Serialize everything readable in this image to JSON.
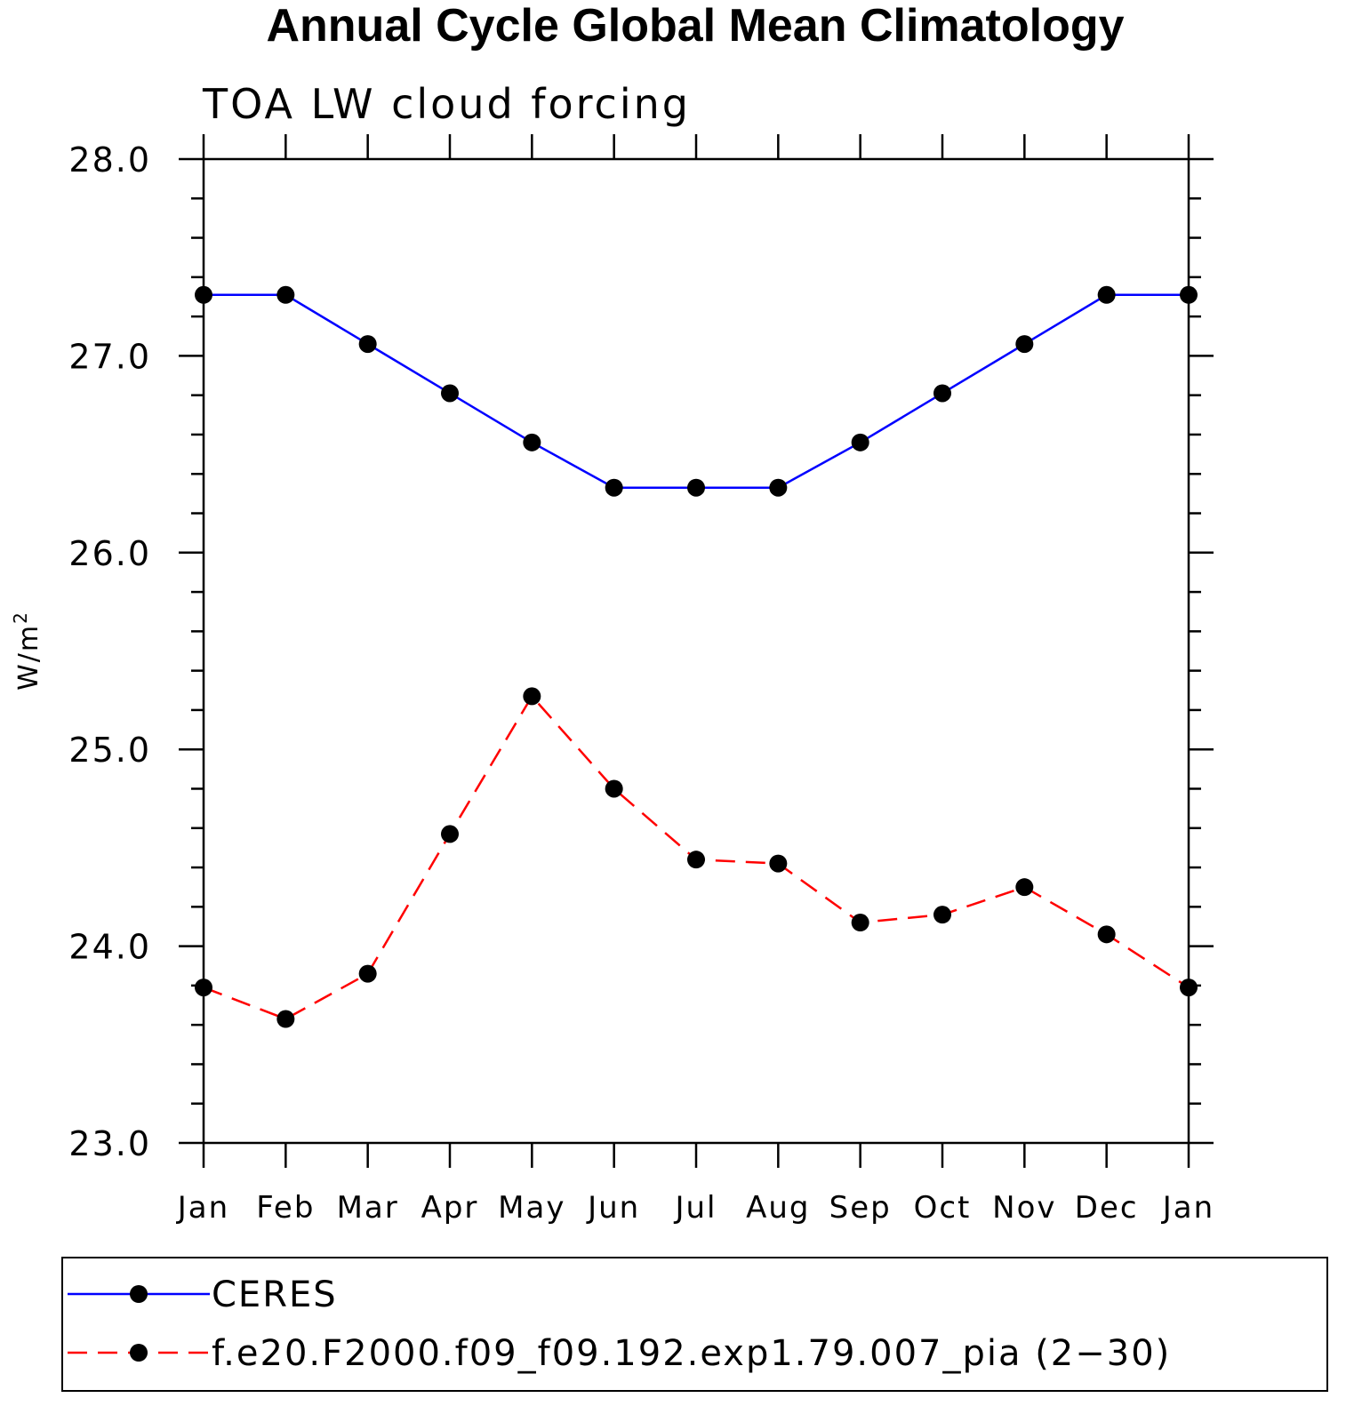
{
  "chart_data": {
    "type": "line",
    "title": "Annual Cycle Global Mean Climatology",
    "subtitle": "TOA LW cloud forcing",
    "ylabel": "W/m",
    "ylabel_superscript": "2",
    "ylim": [
      23.0,
      28.0
    ],
    "y_ticks": [
      "23.0",
      "24.0",
      "25.0",
      "26.0",
      "27.0",
      "28.0"
    ],
    "categories": [
      "Jan",
      "Feb",
      "Mar",
      "Apr",
      "May",
      "Jun",
      "Jul",
      "Aug",
      "Sep",
      "Oct",
      "Nov",
      "Dec",
      "Jan"
    ],
    "grid": false,
    "legend_position": "bottom",
    "series": [
      {
        "name": "CERES",
        "color": "#0000ff",
        "line_style": "solid",
        "marker": "filled-circle",
        "values": [
          27.31,
          27.31,
          27.06,
          26.81,
          26.56,
          26.33,
          26.33,
          26.33,
          26.56,
          26.81,
          27.06,
          27.31,
          27.31
        ]
      },
      {
        "name": "f.e20.F2000.f09_f09.192.exp1.79.007_pia (2−30)",
        "color": "#ff0000",
        "line_style": "dashed",
        "marker": "filled-circle",
        "values": [
          23.79,
          23.63,
          23.86,
          24.57,
          25.27,
          24.8,
          24.44,
          24.42,
          24.12,
          24.16,
          24.3,
          24.06,
          23.79
        ]
      }
    ]
  }
}
